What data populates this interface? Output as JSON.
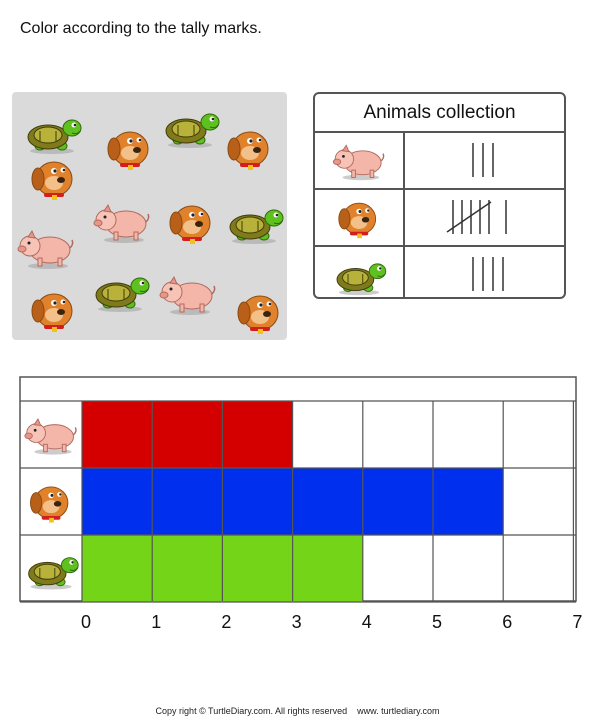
{
  "instruction": "Color according to the tally marks.",
  "tally_table": {
    "title": "Animals collection",
    "rows": [
      {
        "animal": "pig",
        "icon": "pig-icon",
        "tally": 3
      },
      {
        "animal": "dog",
        "icon": "dog-icon",
        "tally": 6
      },
      {
        "animal": "turtle",
        "icon": "turtle-icon",
        "tally": 4
      }
    ]
  },
  "animal_panel": [
    "turtle",
    "dog",
    "turtle",
    "dog",
    "dog",
    "pig",
    "dog",
    "turtle",
    "pig",
    "turtle",
    "pig",
    "dog",
    "dog"
  ],
  "chart_data": {
    "type": "bar",
    "orientation": "horizontal",
    "categories": [
      "pig",
      "dog",
      "turtle"
    ],
    "values": [
      3,
      6,
      4
    ],
    "x_ticks": [
      "0",
      "1",
      "2",
      "3",
      "4",
      "5",
      "6",
      "7"
    ],
    "xlim": [
      0,
      7
    ],
    "colors": [
      "#d40000",
      "#0030ee",
      "#74d417"
    ],
    "grid": true
  },
  "footer": {
    "left": "Copy right © TurtleDiary.com. All rights reserved",
    "right": "www. turtlediary.com"
  }
}
